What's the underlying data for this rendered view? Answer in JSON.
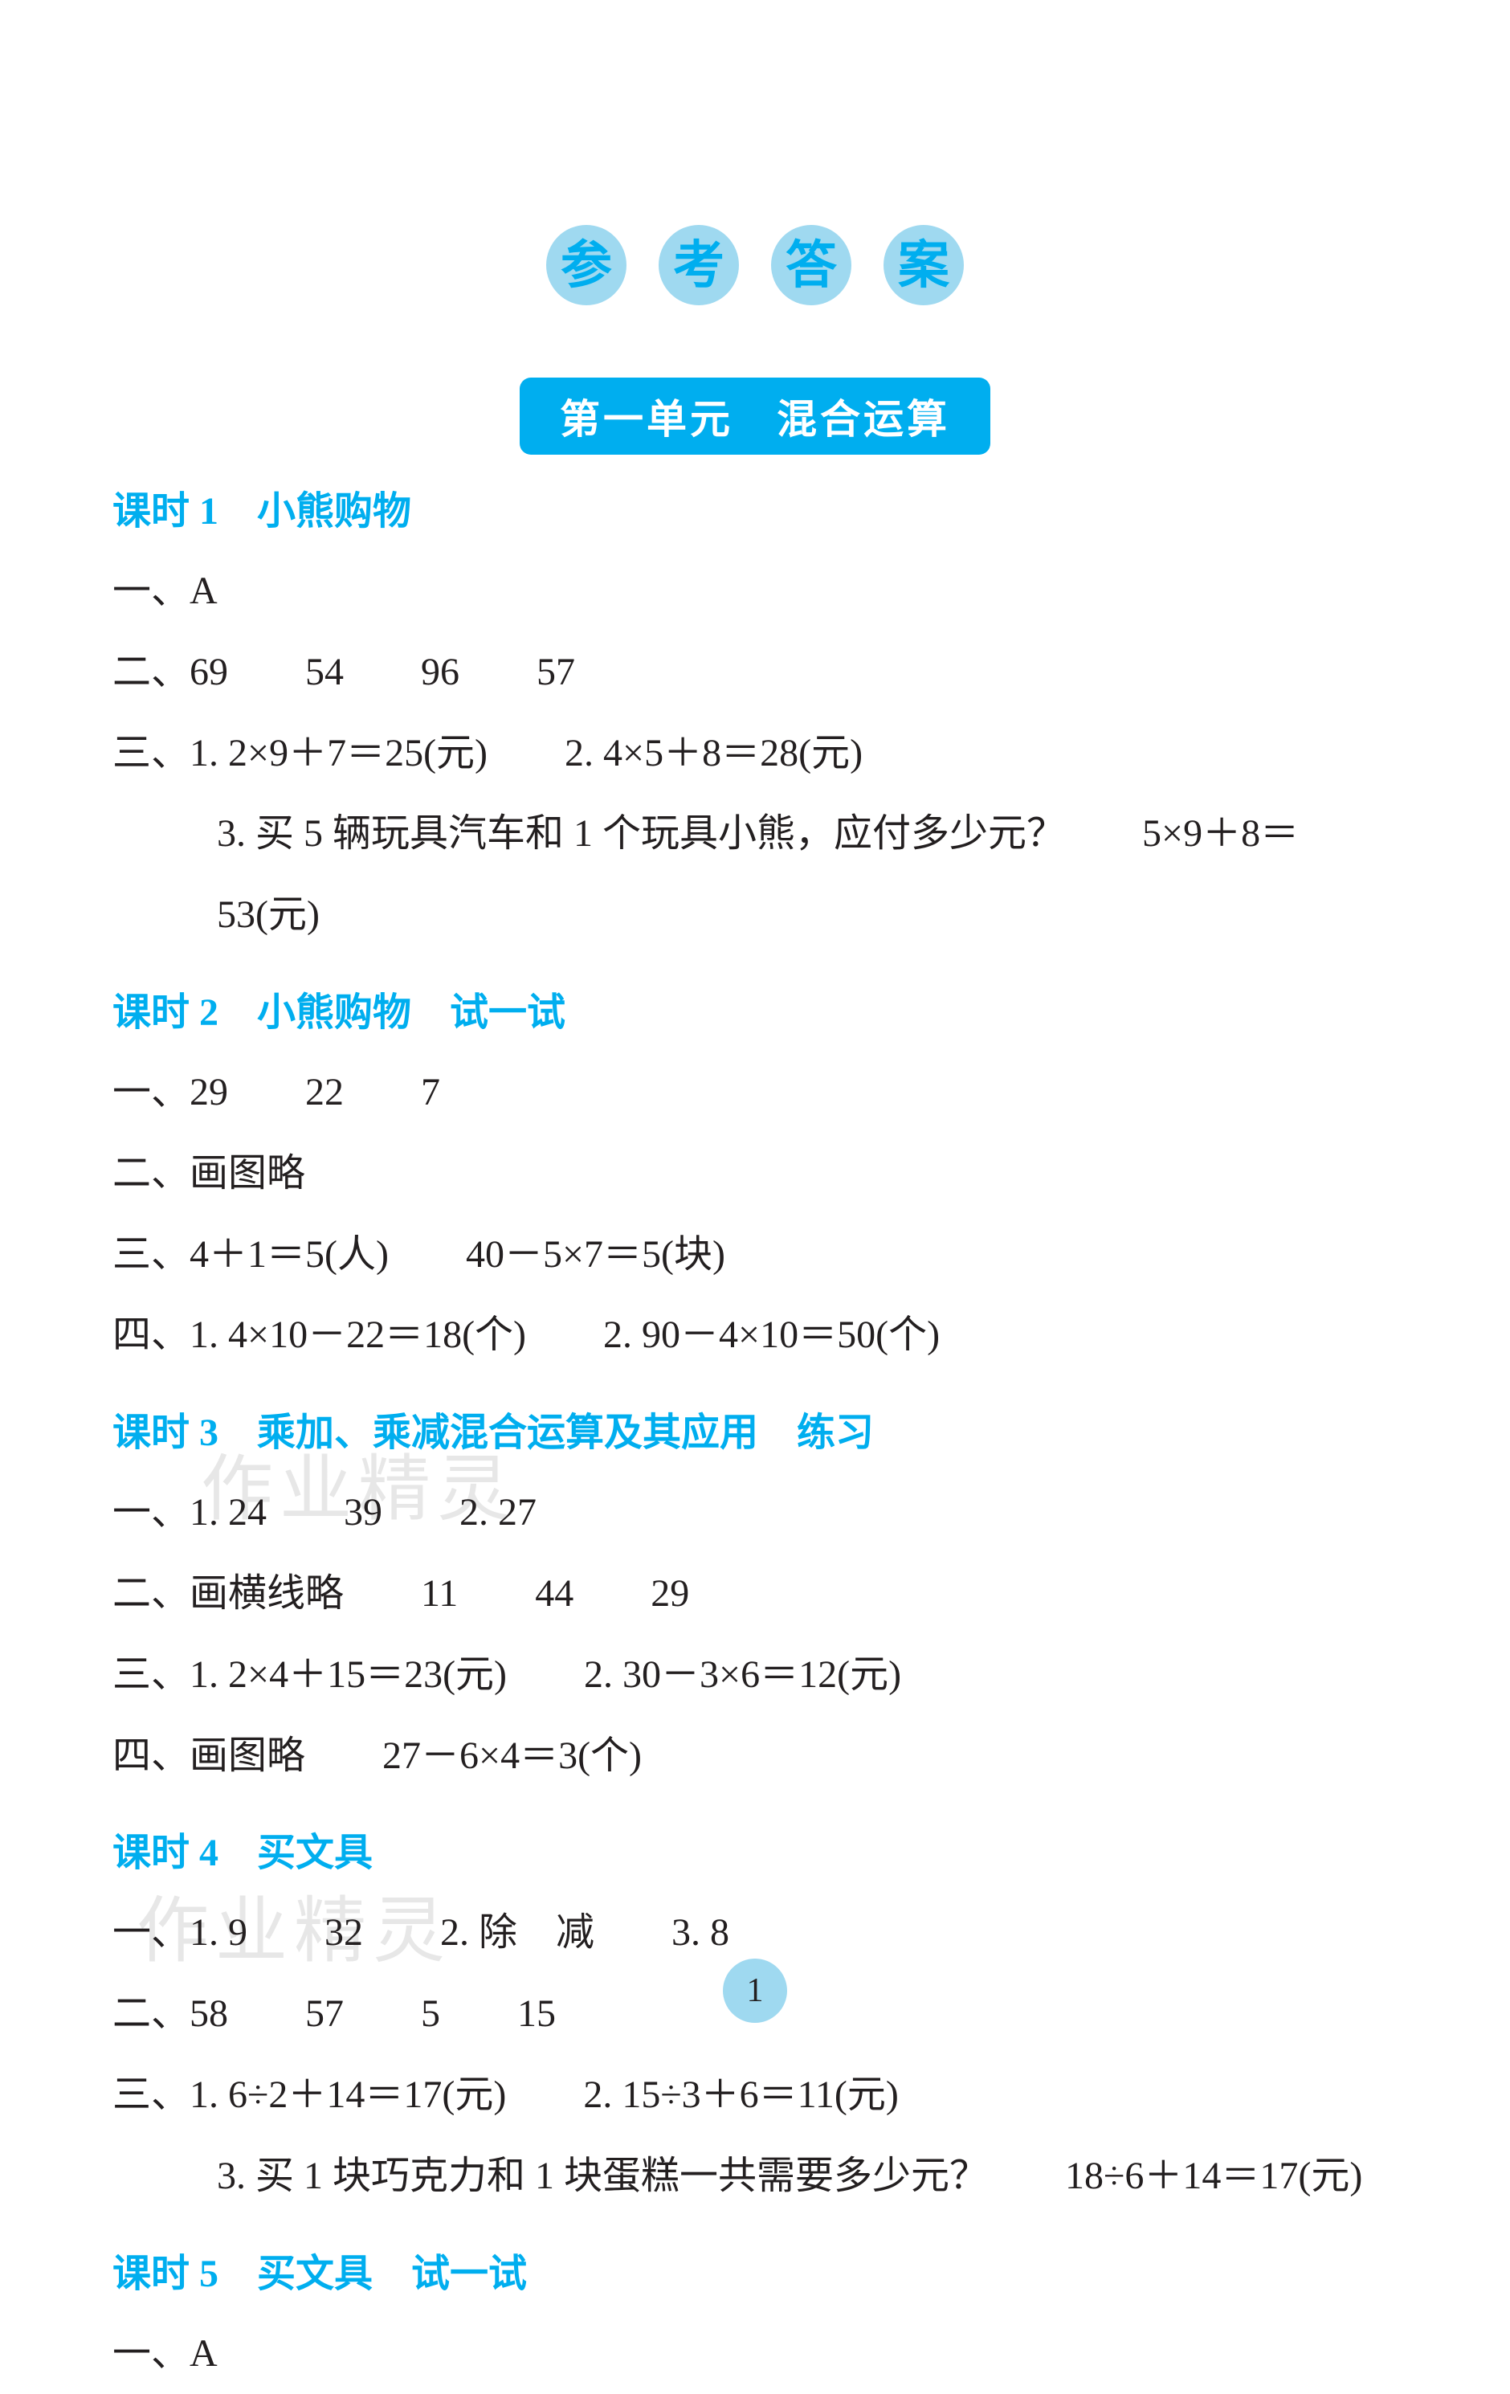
{
  "page_title_chars": [
    "参",
    "考",
    "答",
    "案"
  ],
  "unit_header": "第一单元　混合运算",
  "colors": {
    "accent": "#00aeef",
    "circle_bg": "#9fd9f0",
    "text": "#231f20",
    "background": "#ffffff"
  },
  "lessons": [
    {
      "title": "课时 1　小熊购物",
      "lines": [
        {
          "text": "一、A",
          "indent": false
        },
        {
          "text": "二、69　　54　　96　　57",
          "indent": false
        },
        {
          "text": "三、1. 2×9＋7＝25(元)　　2. 4×5＋8＝28(元)",
          "indent": false
        },
        {
          "text": "3. 买 5 辆玩具汽车和 1 个玩具小熊，应付多少元？　　5×9＋8＝53(元)",
          "indent": true
        }
      ]
    },
    {
      "title": "课时 2　小熊购物　试一试",
      "lines": [
        {
          "text": "一、29　　22　　7",
          "indent": false
        },
        {
          "text": "二、画图略",
          "indent": false
        },
        {
          "text": "三、4＋1＝5(人)　　40－5×7＝5(块)",
          "indent": false
        },
        {
          "text": "四、1. 4×10－22＝18(个)　　2. 90－4×10＝50(个)",
          "indent": false
        }
      ]
    },
    {
      "title": "课时 3　乘加、乘减混合运算及其应用　练习",
      "lines": [
        {
          "text": "一、1. 24　　39　　2. 27",
          "indent": false
        },
        {
          "text": "二、画横线略　　11　　44　　29",
          "indent": false
        },
        {
          "text": "三、1. 2×4＋15＝23(元)　　2. 30－3×6＝12(元)",
          "indent": false
        },
        {
          "text": "四、画图略　　27－6×4＝3(个)",
          "indent": false
        }
      ]
    },
    {
      "title": "课时 4　买文具",
      "lines": [
        {
          "text": "一、1. 9　　32　　2. 除　减　　3. 8",
          "indent": false
        },
        {
          "text": "二、58　　57　　5　　15",
          "indent": false
        },
        {
          "text": "三、1. 6÷2＋14＝17(元)　　2. 15÷3＋6＝11(元)",
          "indent": false
        },
        {
          "text": "3. 买 1 块巧克力和 1 块蛋糕一共需要多少元？　　18÷6＋14＝17(元)",
          "indent": true
        }
      ]
    },
    {
      "title": "课时 5　买文具　试一试",
      "lines": [
        {
          "text": "一、A",
          "indent": false
        }
      ]
    }
  ],
  "page_number": "1",
  "watermarks": [
    "作业精灵",
    "作业精灵"
  ]
}
